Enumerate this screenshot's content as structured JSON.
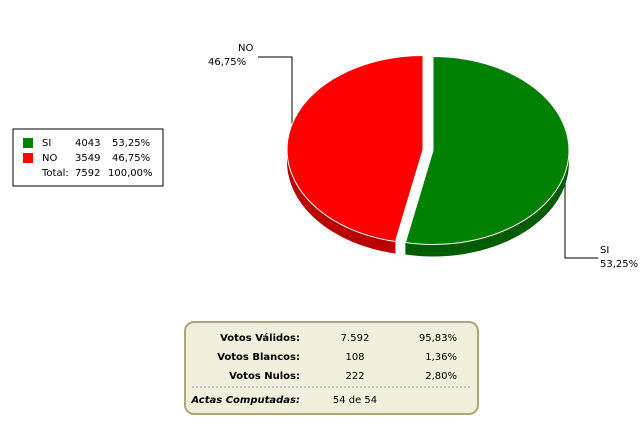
{
  "chart_data": {
    "type": "pie",
    "categories": [
      "SI",
      "NO"
    ],
    "values": [
      53.25,
      46.75
    ],
    "value_labels": [
      "53,25%",
      "46,75%"
    ],
    "colors": [
      "#008000",
      "#ff0000"
    ],
    "legend": {
      "counts": [
        4043,
        3549
      ],
      "total_label": "Total:",
      "total": 7592,
      "total_percent": "100,00%"
    }
  },
  "summary": {
    "rows": [
      {
        "label": "Votos Válidos:",
        "value": "7.592",
        "percent": "95,83%"
      },
      {
        "label": "Votos Blancos:",
        "value": "108",
        "percent": "1,36%"
      },
      {
        "label": "Votos Nulos:",
        "value": "222",
        "percent": "2,80%"
      }
    ],
    "actas": {
      "label": "Actas Computadas:",
      "value": "54 de 54"
    }
  }
}
